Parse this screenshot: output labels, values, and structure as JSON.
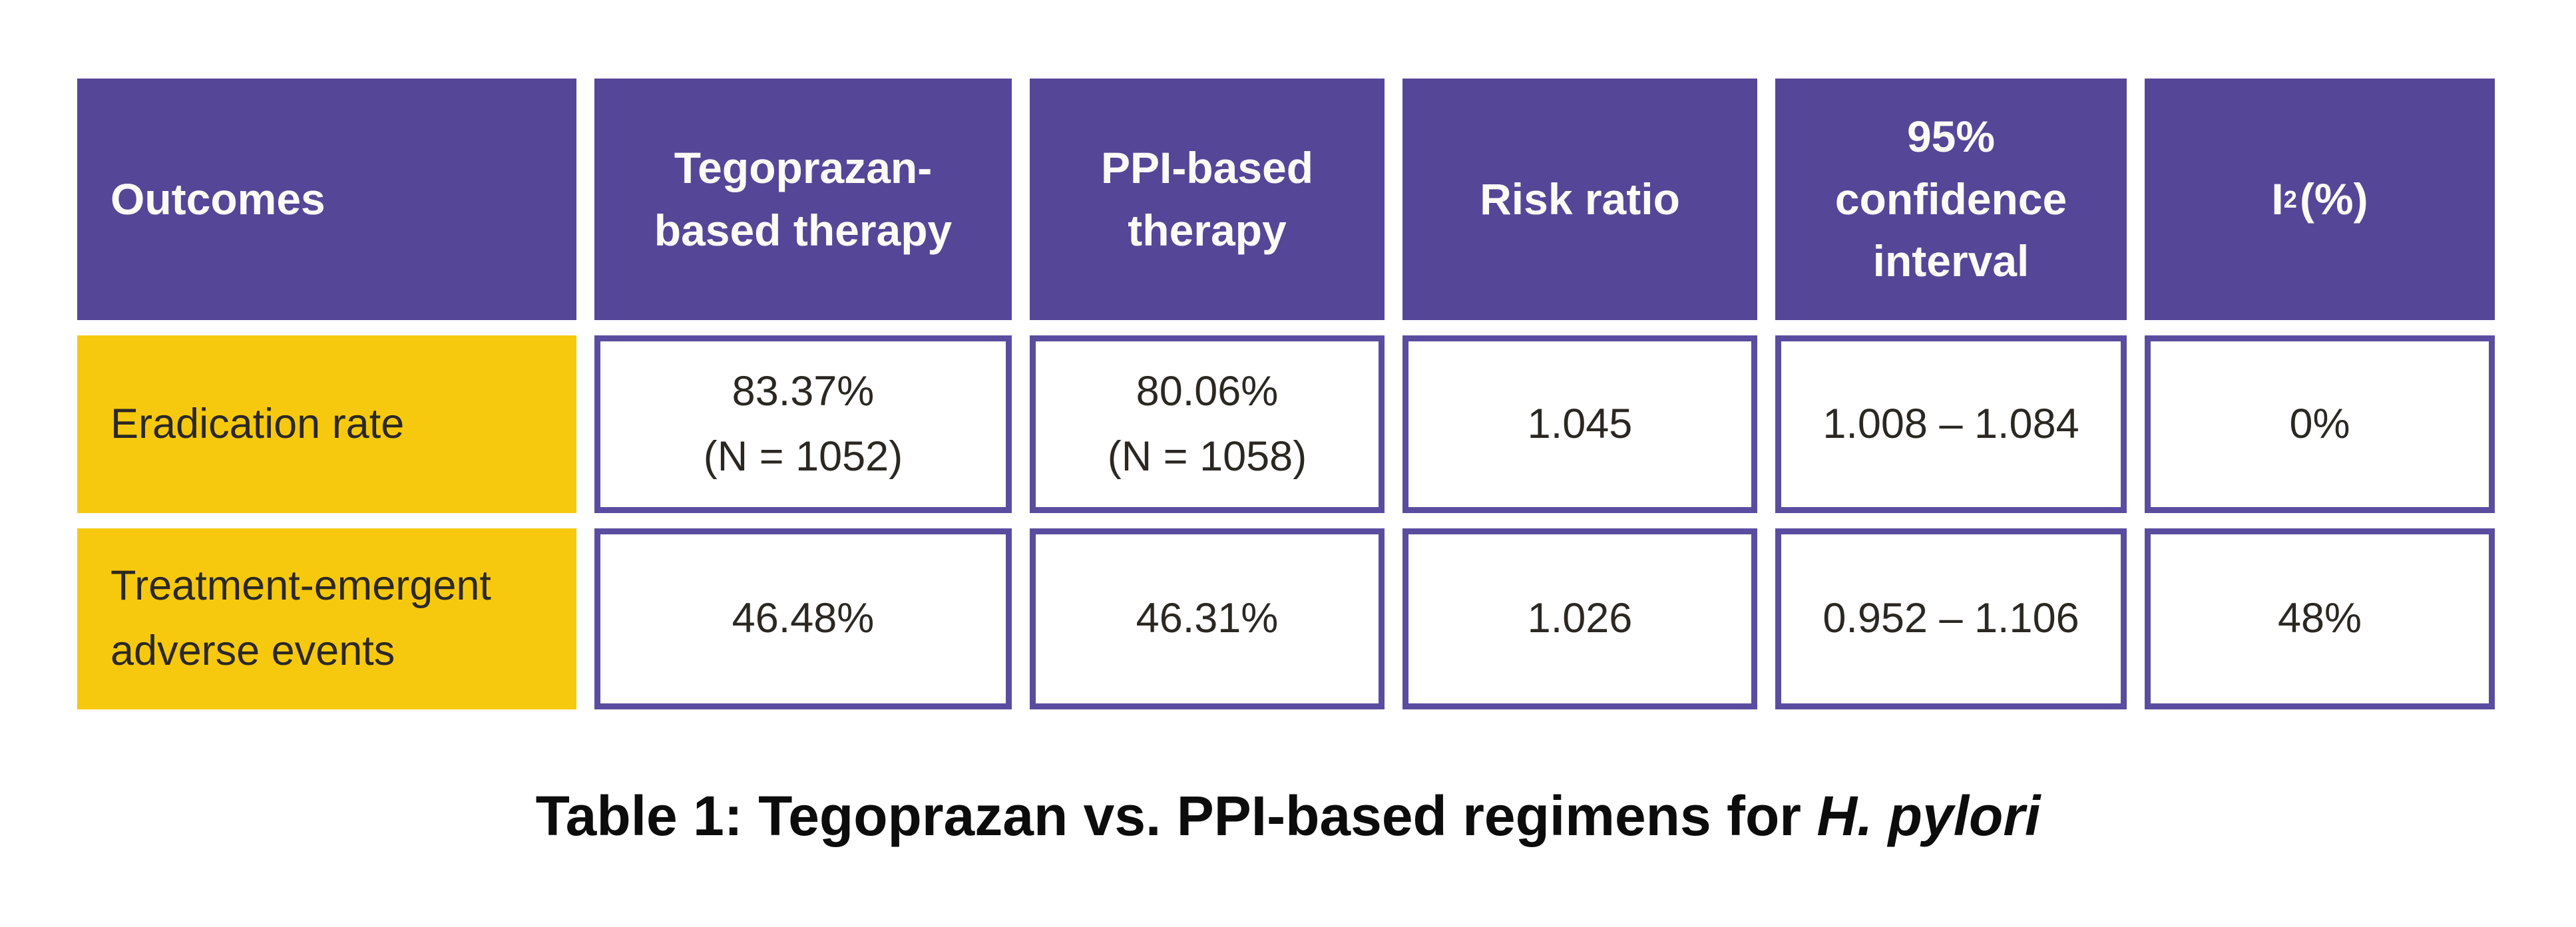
{
  "colors": {
    "purple": "#564697",
    "purple_border": "#5a4da0",
    "yellow": "#f6c90e",
    "header_text": "#fcfbf7",
    "dark_text": "#2b2823",
    "background": "#ffffff"
  },
  "table": {
    "headers": [
      {
        "text": "Outcomes",
        "align": "left"
      },
      {
        "text": "Tegoprazan-based therapy"
      },
      {
        "text": "PPI-based therapy"
      },
      {
        "text": "Risk ratio"
      },
      {
        "text": "95% confidence interval"
      },
      {
        "text": "I",
        "sup": "2",
        "suffix": " (%)"
      }
    ],
    "rows": [
      {
        "label": "Eradication rate",
        "cells": [
          [
            "83.37%",
            "(N = 1052)"
          ],
          [
            "80.06%",
            "(N = 1058)"
          ],
          [
            "1.045"
          ],
          [
            "1.008 – 1.084"
          ],
          [
            "0%"
          ]
        ]
      },
      {
        "label": "Treatment-emergent adverse events",
        "cells": [
          [
            "46.48%"
          ],
          [
            "46.31%"
          ],
          [
            "1.026"
          ],
          [
            "0.952 – 1.106"
          ],
          [
            "48%"
          ]
        ]
      }
    ]
  },
  "caption": {
    "parts": [
      {
        "text": "Table 1: Tegoprazan vs. PPI-based regimens for ",
        "italic": false
      },
      {
        "text": "H. pylori",
        "italic": true
      }
    ]
  },
  "chart_data": {
    "type": "table",
    "title": "Table 1: Tegoprazan vs. PPI-based regimens for H. pylori",
    "columns": [
      "Outcomes",
      "Tegoprazan-based therapy",
      "PPI-based therapy",
      "Risk ratio",
      "95% confidence interval",
      "I² (%)"
    ],
    "rows": [
      [
        "Eradication rate",
        "83.37% (N = 1052)",
        "80.06% (N = 1058)",
        "1.045",
        "1.008 – 1.084",
        "0%"
      ],
      [
        "Treatment-emergent adverse events",
        "46.48%",
        "46.31%",
        "1.026",
        "0.952 – 1.106",
        "48%"
      ]
    ]
  }
}
